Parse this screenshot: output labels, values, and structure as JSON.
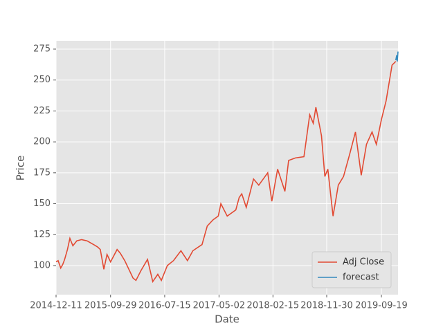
{
  "chart_data": {
    "type": "line",
    "x_label": "Date",
    "y_label": "Price",
    "series": [
      {
        "name": "Adj Close",
        "color": "#E24A33",
        "x": [
          "2014-12-11",
          "2014-12-22",
          "2015-01-05",
          "2015-01-16",
          "2015-01-26",
          "2015-02-10",
          "2015-02-23",
          "2015-03-11",
          "2015-04-01",
          "2015-04-27",
          "2015-05-26",
          "2015-06-30",
          "2015-07-22",
          "2015-08-05",
          "2015-08-24",
          "2015-09-10",
          "2015-09-29",
          "2015-11-03",
          "2015-11-20",
          "2015-12-14",
          "2016-01-05",
          "2016-01-27",
          "2016-02-12",
          "2016-03-10",
          "2016-04-14",
          "2016-05-12",
          "2016-06-08",
          "2016-06-27",
          "2016-07-29",
          "2016-08-31",
          "2016-10-10",
          "2016-11-14",
          "2016-12-13",
          "2017-01-31",
          "2017-02-28",
          "2017-03-31",
          "2017-04-28",
          "2017-05-12",
          "2017-06-15",
          "2017-07-31",
          "2017-08-18",
          "2017-09-01",
          "2017-09-25",
          "2017-11-03",
          "2017-12-01",
          "2018-01-18",
          "2018-02-09",
          "2018-03-12",
          "2018-04-20",
          "2018-05-10",
          "2018-06-15",
          "2018-07-31",
          "2018-08-31",
          "2018-09-19",
          "2018-10-03",
          "2018-10-24",
          "2018-11-02",
          "2018-11-20",
          "2018-12-06",
          "2019-01-03",
          "2019-01-31",
          "2019-02-28",
          "2019-04-02",
          "2019-05-03",
          "2019-06-03",
          "2019-07-01",
          "2019-07-31",
          "2019-08-23",
          "2019-09-19",
          "2019-10-14",
          "2019-11-15",
          "2019-12-05"
        ],
        "values": [
          103,
          104,
          98,
          101,
          105,
          113,
          122,
          116,
          120,
          121,
          120,
          117,
          115,
          113,
          97,
          109,
          103,
          113,
          110,
          104,
          97,
          90,
          88,
          96,
          105,
          87,
          93,
          88,
          100,
          104,
          112,
          104,
          112,
          117,
          132,
          137,
          140,
          150,
          140,
          145,
          155,
          158,
          147,
          170,
          165,
          175,
          152,
          178,
          160,
          185,
          187,
          188,
          222,
          215,
          228,
          212,
          205,
          172,
          178,
          140,
          165,
          172,
          190,
          208,
          173,
          198,
          208,
          198,
          218,
          233,
          262,
          265
        ]
      },
      {
        "name": "forecast",
        "color": "#348ABD",
        "x": [
          "2019-12-05",
          "2019-12-10",
          "2019-12-13",
          "2019-12-17"
        ],
        "values": [
          266,
          270,
          265,
          273
        ]
      }
    ],
    "xlim": [
      "2014-12-11",
      "2019-12-17"
    ],
    "xticks": [
      "2014-12-11",
      "2015-09-29",
      "2016-07-15",
      "2017-05-02",
      "2018-02-15",
      "2018-11-30",
      "2019-09-19"
    ],
    "ylim": [
      76.5,
      281.7
    ],
    "yticks": [
      100,
      125,
      150,
      175,
      200,
      225,
      250,
      275
    ],
    "grid": true,
    "legend": "lower right"
  }
}
